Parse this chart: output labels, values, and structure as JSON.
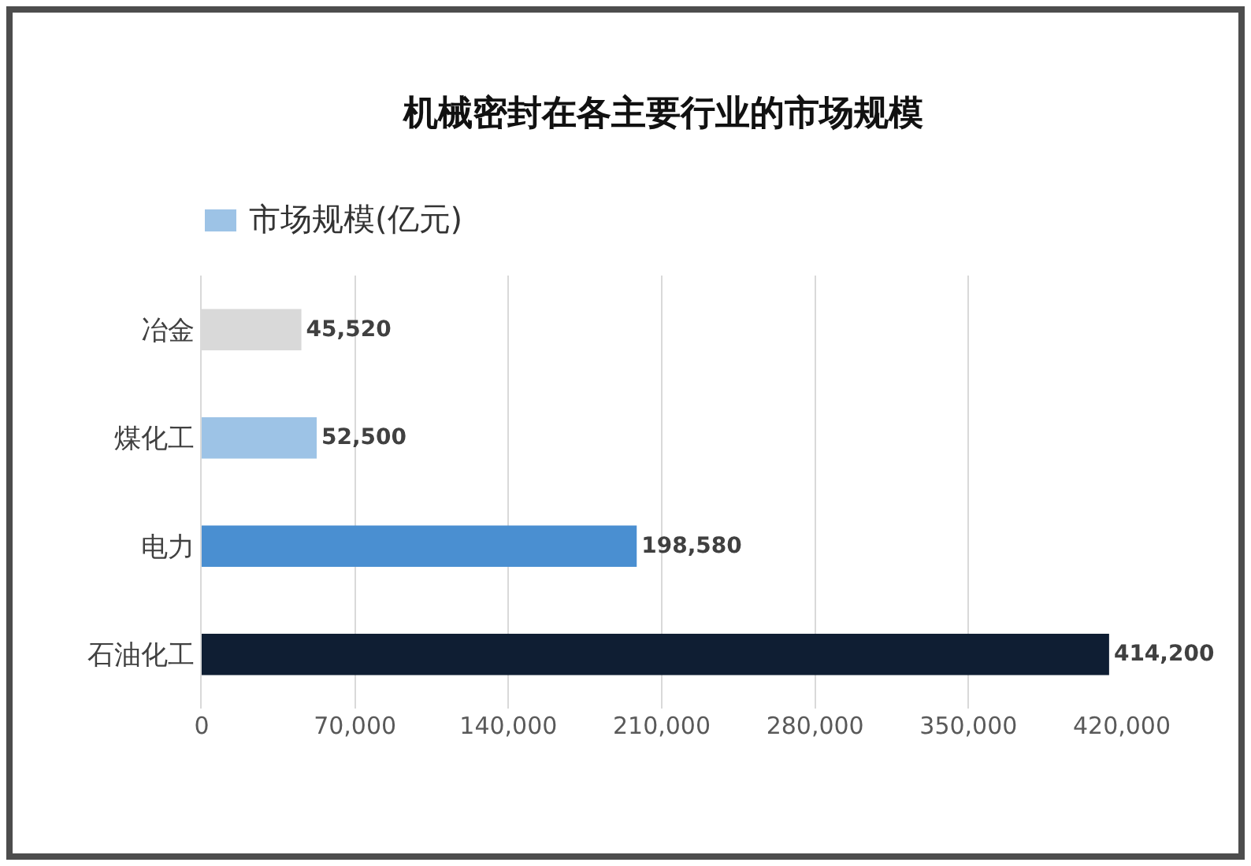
{
  "chart_data": {
    "type": "bar",
    "orientation": "horizontal",
    "title": "机械密封在各主要行业的市场规模",
    "categories": [
      "冶金",
      "煤化工",
      "电力",
      "石油化工"
    ],
    "series": [
      {
        "name": "市场规模(亿元)",
        "color": "#9dc3e6",
        "colors": [
          "#d9d9d9",
          "#9dc3e6",
          "#4a8fd1",
          "#0f1e33"
        ],
        "values": [
          45520,
          52500,
          198580,
          414200
        ],
        "value_labels": [
          "45,520",
          "52,500",
          "198,580",
          "414,200"
        ]
      }
    ],
    "xlim": [
      0,
      420000
    ],
    "xticks": [
      {
        "value": 0,
        "label": "0"
      },
      {
        "value": 70000,
        "label": "70,000"
      },
      {
        "value": 140000,
        "label": "140,000"
      },
      {
        "value": 210000,
        "label": "210,000"
      },
      {
        "value": 280000,
        "label": "280,000"
      },
      {
        "value": 350000,
        "label": "350,000"
      },
      {
        "value": 420000,
        "label": "420,000"
      }
    ],
    "grid": "x",
    "legend": "top left"
  }
}
